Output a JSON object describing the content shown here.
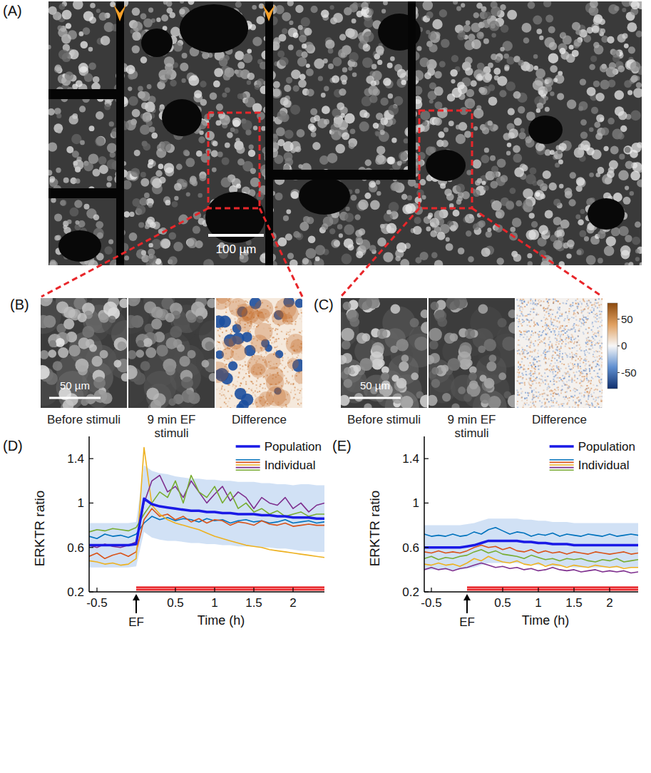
{
  "figure": {
    "panel_labels": [
      "(A)",
      "(B)",
      "(C)",
      "(D)",
      "(E)"
    ],
    "A": {
      "scale_bar": "100 µm"
    },
    "B": {
      "scale_bar": "50 µm",
      "captions": [
        "Before stimuli",
        "9 min EF stimuli",
        "Difference"
      ]
    },
    "C": {
      "scale_bar": "50 µm",
      "captions": [
        "Before stimuli",
        "9 min EF stimuli",
        "Difference"
      ]
    },
    "colorbar": {
      "range": [
        -80,
        80
      ],
      "ticks": [
        50,
        0,
        -50
      ]
    }
  },
  "chart_data": [
    {
      "type": "line",
      "x_label": "Time (h)",
      "y_label": "ERKTR ratio",
      "x": [
        -0.6,
        -0.5,
        -0.4,
        -0.3,
        -0.2,
        -0.1,
        0,
        0.1,
        0.2,
        0.3,
        0.4,
        0.5,
        0.6,
        0.7,
        0.8,
        0.9,
        1,
        1.1,
        1.2,
        1.3,
        1.4,
        1.5,
        1.6,
        1.7,
        1.8,
        1.9,
        2,
        2.1,
        2.2,
        2.3,
        2.4
      ],
      "xlim": [
        -0.6,
        2.4
      ],
      "ylim": [
        0.2,
        1.6
      ],
      "xticks": [
        -0.5,
        0.5,
        1,
        1.5,
        2
      ],
      "yticks": [
        0.2,
        0.6,
        1,
        1.4
      ],
      "legend": "upper right",
      "annotations": [
        {
          "text": "EF",
          "x": 0
        }
      ],
      "stimulus_bar": {
        "start": 0,
        "end": 2.4,
        "y": 0.23,
        "color": "#e8262a"
      },
      "series": [
        {
          "name": "Population",
          "color": "#1a1ae6",
          "values": [
            0.62,
            0.62,
            0.62,
            0.62,
            0.62,
            0.62,
            0.63,
            1.04,
            0.99,
            0.97,
            0.96,
            0.95,
            0.94,
            0.93,
            0.93,
            0.92,
            0.92,
            0.91,
            0.91,
            0.9,
            0.9,
            0.9,
            0.89,
            0.89,
            0.88,
            0.88,
            0.87,
            0.87,
            0.87,
            0.86,
            0.86
          ],
          "error": [
            0.2,
            0.2,
            0.2,
            0.2,
            0.2,
            0.2,
            0.2,
            0.3,
            0.3,
            0.3,
            0.3,
            0.29,
            0.29,
            0.29,
            0.29,
            0.29,
            0.29,
            0.29,
            0.29,
            0.29,
            0.29,
            0.29,
            0.29,
            0.29,
            0.29,
            0.29,
            0.29,
            0.3,
            0.3,
            0.3,
            0.3
          ]
        },
        {
          "name": "Individual",
          "color": "#0072bd",
          "values": [
            0.7,
            0.68,
            0.72,
            0.7,
            0.71,
            0.69,
            0.72,
            0.82,
            0.88,
            0.85,
            0.87,
            0.84,
            0.86,
            0.85,
            0.83,
            0.86,
            0.84,
            0.85,
            0.82,
            0.84,
            0.85,
            0.83,
            0.84,
            0.82,
            0.83,
            0.85,
            0.82,
            0.83,
            0.84,
            0.82,
            0.83
          ]
        },
        {
          "name": "Individual",
          "color": "#d95319",
          "values": [
            0.52,
            0.55,
            0.5,
            0.53,
            0.55,
            0.52,
            0.56,
            0.85,
            0.95,
            0.88,
            0.9,
            0.85,
            0.88,
            0.83,
            0.86,
            0.82,
            0.85,
            0.84,
            0.8,
            0.83,
            0.82,
            0.8,
            0.84,
            0.81,
            0.8,
            0.82,
            0.79,
            0.8,
            0.81,
            0.8,
            0.8
          ]
        },
        {
          "name": "Individual",
          "color": "#edb120",
          "values": [
            0.48,
            0.47,
            0.45,
            0.46,
            0.44,
            0.45,
            0.5,
            1.5,
            0.98,
            0.9,
            0.85,
            0.82,
            0.8,
            0.78,
            0.76,
            0.73,
            0.7,
            0.68,
            0.66,
            0.64,
            0.62,
            0.61,
            0.6,
            0.58,
            0.57,
            0.56,
            0.55,
            0.54,
            0.53,
            0.52,
            0.51
          ]
        },
        {
          "name": "Individual",
          "color": "#7e2f8e",
          "values": [
            0.62,
            0.6,
            0.63,
            0.61,
            0.6,
            0.62,
            0.65,
            1.0,
            1.2,
            1.25,
            1.1,
            1.15,
            1.05,
            1.2,
            1.1,
            1.0,
            1.08,
            1.15,
            1.02,
            1.1,
            1.05,
            0.95,
            1.05,
            1.0,
            0.98,
            1.05,
            0.95,
            1.0,
            0.92,
            0.98,
            1.0
          ]
        },
        {
          "name": "Individual",
          "color": "#77ac30",
          "values": [
            0.74,
            0.76,
            0.75,
            0.77,
            0.76,
            0.75,
            0.78,
            0.9,
            1.0,
            1.1,
            1.05,
            1.2,
            1.0,
            1.25,
            1.1,
            1.05,
            1.15,
            1.0,
            1.1,
            0.95,
            1.0,
            0.92,
            0.95,
            0.9,
            0.93,
            0.88,
            0.9,
            0.92,
            0.88,
            0.9,
            0.9
          ]
        }
      ]
    },
    {
      "type": "line",
      "x_label": "Time (h)",
      "y_label": "ERKTR ratio",
      "x": [
        -0.6,
        -0.5,
        -0.4,
        -0.3,
        -0.2,
        -0.1,
        0,
        0.1,
        0.2,
        0.3,
        0.4,
        0.5,
        0.6,
        0.7,
        0.8,
        0.9,
        1,
        1.1,
        1.2,
        1.3,
        1.4,
        1.5,
        1.6,
        1.7,
        1.8,
        1.9,
        2,
        2.1,
        2.2,
        2.3,
        2.4
      ],
      "xlim": [
        -0.6,
        2.4
      ],
      "ylim": [
        0.2,
        1.6
      ],
      "xticks": [
        -0.5,
        0.5,
        1,
        1.5,
        2
      ],
      "yticks": [
        0.2,
        0.6,
        1,
        1.4
      ],
      "legend": "upper right",
      "annotations": [
        {
          "text": "EF",
          "x": 0
        }
      ],
      "stimulus_bar": {
        "start": 0,
        "end": 2.4,
        "y": 0.23,
        "color": "#e8262a"
      },
      "series": [
        {
          "name": "Population",
          "color": "#1a1ae6",
          "values": [
            0.6,
            0.6,
            0.6,
            0.6,
            0.6,
            0.6,
            0.61,
            0.62,
            0.64,
            0.66,
            0.66,
            0.66,
            0.66,
            0.66,
            0.65,
            0.65,
            0.64,
            0.64,
            0.63,
            0.63,
            0.63,
            0.62,
            0.62,
            0.62,
            0.62,
            0.62,
            0.62,
            0.62,
            0.62,
            0.62,
            0.62
          ],
          "error": [
            0.2,
            0.2,
            0.2,
            0.2,
            0.2,
            0.2,
            0.2,
            0.2,
            0.2,
            0.2,
            0.2,
            0.2,
            0.2,
            0.2,
            0.2,
            0.2,
            0.2,
            0.2,
            0.2,
            0.2,
            0.2,
            0.2,
            0.2,
            0.2,
            0.2,
            0.2,
            0.2,
            0.2,
            0.2,
            0.2,
            0.2
          ]
        },
        {
          "name": "Individual",
          "color": "#0072bd",
          "values": [
            0.72,
            0.7,
            0.71,
            0.7,
            0.72,
            0.7,
            0.71,
            0.74,
            0.72,
            0.76,
            0.78,
            0.75,
            0.72,
            0.74,
            0.73,
            0.7,
            0.72,
            0.71,
            0.73,
            0.7,
            0.72,
            0.71,
            0.7,
            0.72,
            0.71,
            0.7,
            0.72,
            0.7,
            0.71,
            0.72,
            0.71
          ]
        },
        {
          "name": "Individual",
          "color": "#d95319",
          "values": [
            0.56,
            0.55,
            0.57,
            0.55,
            0.56,
            0.55,
            0.57,
            0.6,
            0.62,
            0.6,
            0.61,
            0.58,
            0.6,
            0.57,
            0.56,
            0.58,
            0.55,
            0.57,
            0.55,
            0.56,
            0.54,
            0.56,
            0.55,
            0.54,
            0.56,
            0.55,
            0.54,
            0.55,
            0.56,
            0.54,
            0.55
          ]
        },
        {
          "name": "Individual",
          "color": "#edb120",
          "values": [
            0.45,
            0.44,
            0.46,
            0.44,
            0.45,
            0.43,
            0.46,
            0.5,
            0.48,
            0.52,
            0.49,
            0.47,
            0.46,
            0.48,
            0.45,
            0.44,
            0.46,
            0.43,
            0.45,
            0.44,
            0.42,
            0.44,
            0.43,
            0.42,
            0.44,
            0.43,
            0.42,
            0.43,
            0.41,
            0.42,
            0.42
          ]
        },
        {
          "name": "Individual",
          "color": "#7e2f8e",
          "values": [
            0.4,
            0.42,
            0.4,
            0.41,
            0.39,
            0.41,
            0.42,
            0.44,
            0.46,
            0.44,
            0.42,
            0.43,
            0.41,
            0.42,
            0.4,
            0.41,
            0.39,
            0.4,
            0.42,
            0.4,
            0.39,
            0.4,
            0.38,
            0.39,
            0.4,
            0.38,
            0.39,
            0.38,
            0.39,
            0.37,
            0.38
          ]
        },
        {
          "name": "Individual",
          "color": "#77ac30",
          "values": [
            0.5,
            0.52,
            0.49,
            0.51,
            0.5,
            0.52,
            0.53,
            0.56,
            0.58,
            0.55,
            0.57,
            0.54,
            0.53,
            0.52,
            0.5,
            0.53,
            0.51,
            0.49,
            0.5,
            0.48,
            0.5,
            0.49,
            0.5,
            0.48,
            0.47,
            0.49,
            0.48,
            0.5,
            0.47,
            0.48,
            0.49
          ]
        }
      ]
    }
  ]
}
